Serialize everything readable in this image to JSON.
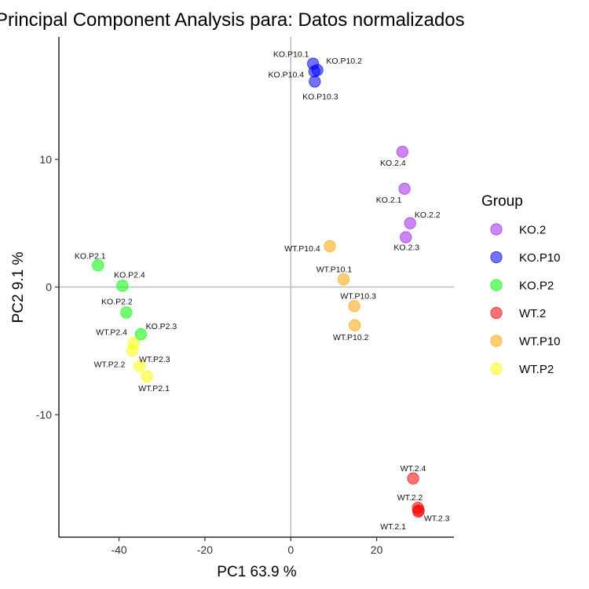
{
  "chart_data": {
    "type": "scatter",
    "title": "Principal Component Analysis para:  Datos normalizados",
    "xlabel": "PC1 63.9 %",
    "ylabel": "PC2 9.1 %",
    "xlim": [
      -54,
      38
    ],
    "ylim": [
      -19.6,
      19.6
    ],
    "xticks": [
      -40,
      -20,
      0,
      20
    ],
    "yticks": [
      -10,
      0,
      10
    ],
    "reference_lines": {
      "x": 0,
      "y": 0
    },
    "grid": false,
    "legend": {
      "title": "Group",
      "position": "right"
    },
    "series": [
      {
        "name": "KO.2",
        "color": "#A020F0",
        "points": [
          {
            "label": "KO.2.4",
            "x": 26.0,
            "y": 10.6
          },
          {
            "label": "KO.2.1",
            "x": 26.5,
            "y": 7.7
          },
          {
            "label": "KO.2.2",
            "x": 27.8,
            "y": 5.0
          },
          {
            "label": "KO.2.3",
            "x": 26.8,
            "y": 3.9
          }
        ]
      },
      {
        "name": "KO.P10",
        "color": "#0000FF",
        "points": [
          {
            "label": "KO.P10.1",
            "x": 5.2,
            "y": 17.5
          },
          {
            "label": "KO.P10.2",
            "x": 6.2,
            "y": 17.0
          },
          {
            "label": "KO.P10.4",
            "x": 5.5,
            "y": 16.9
          },
          {
            "label": "KO.P10.3",
            "x": 5.6,
            "y": 16.1
          }
        ]
      },
      {
        "name": "KO.P2",
        "color": "#00FF00",
        "points": [
          {
            "label": "KO.P2.1",
            "x": -44.9,
            "y": 1.7
          },
          {
            "label": "KO.P2.4",
            "x": -39.2,
            "y": 0.1
          },
          {
            "label": "KO.P2.2",
            "x": -38.3,
            "y": -2.0
          },
          {
            "label": "KO.P2.3",
            "x": -34.9,
            "y": -3.7
          }
        ]
      },
      {
        "name": "WT.2",
        "color": "#FF0000",
        "points": [
          {
            "label": "WT.2.4",
            "x": 28.5,
            "y": -15.0
          },
          {
            "label": "WT.2.2",
            "x": 29.6,
            "y": -17.3
          },
          {
            "label": "WT.2.1",
            "x": 29.7,
            "y": -17.6
          },
          {
            "label": "WT.2.3",
            "x": 29.8,
            "y": -17.5
          }
        ]
      },
      {
        "name": "WT.P10",
        "color": "#FFA500",
        "points": [
          {
            "label": "WT.P10.4",
            "x": 9.1,
            "y": 3.2
          },
          {
            "label": "WT.P10.1",
            "x": 12.3,
            "y": 0.6
          },
          {
            "label": "WT.P10.3",
            "x": 14.8,
            "y": -1.5
          },
          {
            "label": "WT.P10.2",
            "x": 14.9,
            "y": -3.0
          }
        ]
      },
      {
        "name": "WT.P2",
        "color": "#FFFF00",
        "points": [
          {
            "label": "WT.P2.4",
            "x": -36.6,
            "y": -4.4
          },
          {
            "label": "WT.P2.2",
            "x": -36.9,
            "y": -5.0
          },
          {
            "label": "WT.P2.3",
            "x": -35.2,
            "y": -6.2
          },
          {
            "label": "WT.P2.1",
            "x": -33.5,
            "y": -7.0
          }
        ]
      }
    ]
  }
}
